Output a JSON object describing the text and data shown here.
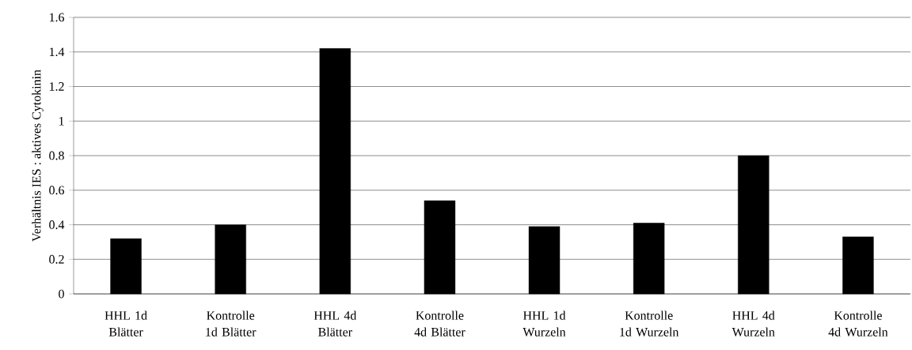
{
  "chart_data": {
    "type": "bar",
    "ylabel": "Verhältnis IES : aktives Cytokinin",
    "categories": [
      "HHL 1d Blätter",
      "Kontrolle 1d Blätter",
      "HHL 4d Blätter",
      "Kontrolle 4d Blätter",
      "HHL 1d Wurzeln",
      "Kontrolle 1d Wurzeln",
      "HHL 4d Wurzeln",
      "Kontrolle 4d Wurzeln"
    ],
    "values": [
      0.32,
      0.4,
      1.42,
      0.54,
      0.39,
      0.41,
      0.8,
      0.33
    ],
    "color": "#000000",
    "ylim": [
      0,
      1.6
    ],
    "yticks": [
      0,
      0.2,
      0.4,
      0.6,
      0.8,
      1,
      1.2,
      1.4,
      1.6
    ],
    "grid": "y"
  }
}
